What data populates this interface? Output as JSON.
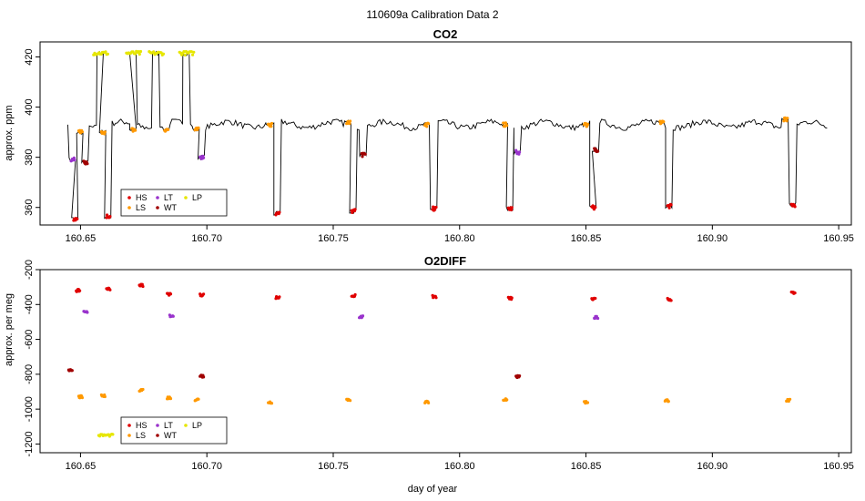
{
  "figure_title": "110609a   Calibration Data 2",
  "xlabel": "day of year",
  "colors": {
    "HS": "#e00000",
    "LS": "#ff9900",
    "LT": "#9933cc",
    "WT": "#a00000",
    "LP": "#e6e600",
    "trace": "#000000"
  },
  "chart_data": [
    {
      "type": "line",
      "title": "CO2",
      "xlabel": "",
      "ylabel": "approx. ppm",
      "xlim": [
        160.634,
        160.955
      ],
      "ylim": [
        353,
        426
      ],
      "xticks": [
        160.65,
        160.7,
        160.75,
        160.8,
        160.85,
        160.9,
        160.95
      ],
      "xtick_labels": [
        "160.65",
        "160.70",
        "160.75",
        "160.80",
        "160.85",
        "160.90",
        "160.95"
      ],
      "yticks": [
        360,
        380,
        400,
        420
      ],
      "ytick_labels": [
        "360",
        "380",
        "400",
        "420"
      ],
      "legend": {
        "placement": "bottom-left",
        "entries": [
          {
            "key": "HS",
            "label": "HS"
          },
          {
            "key": "LT",
            "label": "LT"
          },
          {
            "key": "LP",
            "label": "LP"
          },
          {
            "key": "LS",
            "label": "LS"
          },
          {
            "key": "WT",
            "label": "WT"
          }
        ]
      },
      "series": [
        {
          "name": "HS",
          "points": [
            [
              160.648,
              355.5
            ],
            [
              160.661,
              356.5
            ],
            [
              160.728,
              357.5
            ],
            [
              160.758,
              358.5
            ],
            [
              160.79,
              359.5
            ],
            [
              160.82,
              359.5
            ],
            [
              160.853,
              360
            ],
            [
              160.883,
              360.5
            ],
            [
              160.932,
              361
            ]
          ]
        },
        {
          "name": "LS",
          "points": [
            [
              160.65,
              390
            ],
            [
              160.659,
              390
            ],
            [
              160.671,
              391
            ],
            [
              160.684,
              391
            ],
            [
              160.696,
              391
            ],
            [
              160.725,
              393
            ],
            [
              160.756,
              394
            ],
            [
              160.787,
              393
            ],
            [
              160.818,
              393
            ],
            [
              160.85,
              393
            ],
            [
              160.88,
              394
            ],
            [
              160.929,
              395
            ]
          ]
        },
        {
          "name": "LT",
          "points": [
            [
              160.647,
              379
            ],
            [
              160.698,
              380
            ],
            [
              160.823,
              382
            ]
          ]
        },
        {
          "name": "WT",
          "points": [
            [
              160.652,
              378
            ],
            [
              160.762,
              381
            ],
            [
              160.854,
              383
            ]
          ]
        },
        {
          "name": "LP",
          "points": [
            [
              160.658,
              421.5
            ],
            [
              160.671,
              421.5
            ],
            [
              160.68,
              421.5
            ],
            [
              160.692,
              421.5
            ]
          ]
        }
      ]
    },
    {
      "type": "line",
      "title": "O2DIFF",
      "xlabel": "day of year",
      "ylabel": "approx. per meg",
      "xlim": [
        160.634,
        160.955
      ],
      "ylim": [
        -1250,
        -200
      ],
      "xticks": [
        160.65,
        160.7,
        160.75,
        160.8,
        160.85,
        160.9,
        160.95
      ],
      "xtick_labels": [
        "160.65",
        "160.70",
        "160.75",
        "160.80",
        "160.85",
        "160.90",
        "160.95"
      ],
      "yticks": [
        -1200,
        -1000,
        -800,
        -600,
        -400,
        -200
      ],
      "ytick_labels": [
        "-1200",
        "-1000",
        "-800",
        "-600",
        "-400",
        "-200"
      ],
      "legend": {
        "placement": "bottom-left",
        "entries": [
          {
            "key": "HS",
            "label": "HS"
          },
          {
            "key": "LT",
            "label": "LT"
          },
          {
            "key": "LP",
            "label": "LP"
          },
          {
            "key": "LS",
            "label": "LS"
          },
          {
            "key": "WT",
            "label": "WT"
          }
        ]
      },
      "series": [
        {
          "name": "HS",
          "points": [
            [
              160.649,
              -320
            ],
            [
              160.661,
              -310
            ],
            [
              160.674,
              -290
            ],
            [
              160.685,
              -340
            ],
            [
              160.698,
              -345
            ],
            [
              160.728,
              -360
            ],
            [
              160.758,
              -350
            ],
            [
              160.79,
              -355
            ],
            [
              160.82,
              -365
            ],
            [
              160.853,
              -370
            ],
            [
              160.883,
              -370
            ],
            [
              160.932,
              -335
            ]
          ]
        },
        {
          "name": "LS",
          "points": [
            [
              160.65,
              -930
            ],
            [
              160.659,
              -925
            ],
            [
              160.674,
              -890
            ],
            [
              160.685,
              -935
            ],
            [
              160.696,
              -945
            ],
            [
              160.725,
              -960
            ],
            [
              160.756,
              -945
            ],
            [
              160.787,
              -960
            ],
            [
              160.818,
              -945
            ],
            [
              160.85,
              -960
            ],
            [
              160.882,
              -950
            ],
            [
              160.93,
              -950
            ]
          ]
        },
        {
          "name": "LT",
          "points": [
            [
              160.652,
              -445
            ],
            [
              160.686,
              -465
            ],
            [
              160.761,
              -470
            ],
            [
              160.854,
              -475
            ]
          ]
        },
        {
          "name": "WT",
          "points": [
            [
              160.646,
              -775
            ],
            [
              160.698,
              -810
            ],
            [
              160.823,
              -812
            ]
          ]
        },
        {
          "name": "LP",
          "points": [
            [
              160.66,
              -1150
            ],
            [
              160.674,
              -1155
            ],
            [
              160.684,
              -1160
            ],
            [
              160.692,
              -1165
            ]
          ]
        }
      ]
    }
  ]
}
